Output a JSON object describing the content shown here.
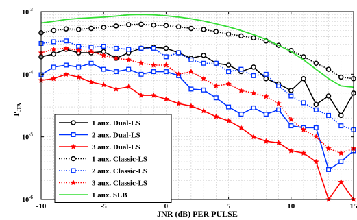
{
  "chart_data": {
    "type": "line",
    "title": "",
    "xlabel": "JNR (dB) PER PULSE",
    "ylabel_main": "P",
    "ylabel_sub": "JFA",
    "xlim": [
      -10,
      15
    ],
    "ylim": [
      1e-06,
      0.001
    ],
    "y_scale": "log",
    "grid": true,
    "legend_position": "lower-left",
    "x_ticks": [
      -10,
      -5,
      0,
      5,
      10,
      15
    ],
    "x_tick_labels": [
      "-10",
      "-5",
      "0",
      "5",
      "10",
      "15"
    ],
    "y_ticks": [
      1e-06,
      1e-05,
      0.0001,
      0.001
    ],
    "y_tick_labels": [
      {
        "base": "10",
        "exp": "-6"
      },
      {
        "base": "10",
        "exp": "-5"
      },
      {
        "base": "10",
        "exp": "-4"
      },
      {
        "base": "10",
        "exp": "-3"
      }
    ],
    "x": [
      -10,
      -9,
      -8,
      -7,
      -6,
      -5,
      -4,
      -3,
      -2,
      -1,
      0,
      1,
      2,
      3,
      4,
      5,
      6,
      7,
      8,
      9,
      10,
      11,
      12,
      13,
      14,
      15
    ],
    "series": [
      {
        "name": "1 aux. Dual-LS",
        "color": "#000000",
        "dash": "solid",
        "marker": "circle",
        "values": [
          0.00019,
          0.00021,
          0.00025,
          0.00022,
          0.00022,
          0.00023,
          0.00018,
          0.00022,
          0.00026,
          0.00027,
          0.00026,
          0.00022,
          0.00018,
          0.0002,
          0.00015,
          0.00014,
          0.00011,
          0.00013,
          8.5e-05,
          7e-05,
          5.5e-05,
          8.5e-05,
          3.3e-05,
          4.5e-05,
          2.2e-05,
          5e-05
        ]
      },
      {
        "name": "2 aux. Dual-LS",
        "color": "#0033ff",
        "dash": "solid",
        "marker": "square",
        "values": [
          9.8e-05,
          0.00013,
          0.00014,
          0.00013,
          0.00015,
          0.00012,
          0.00011,
          0.00012,
          0.0001,
          0.00011,
          0.00011,
          9.5e-05,
          5.8e-05,
          5.6e-05,
          4.2e-05,
          3e-05,
          2.3e-05,
          2.9e-05,
          2.3e-05,
          2.7e-05,
          1.5e-05,
          1.4e-05,
          1.4e-05,
          3e-06,
          4e-06,
          6e-06
        ]
      },
      {
        "name": "3 aux. Dual-LS",
        "color": "#ff0000",
        "dash": "solid",
        "marker": "star",
        "values": [
          8e-05,
          8.5e-05,
          0.0001,
          9e-05,
          7.5e-05,
          6.8e-05,
          5.8e-05,
          6.3e-05,
          4.6e-05,
          4.6e-05,
          4e-05,
          3.4e-05,
          3.1e-05,
          2.6e-05,
          2.1e-05,
          1.8e-05,
          1.4e-05,
          1e-05,
          8.5e-06,
          8e-06,
          6e-06,
          5.5e-06,
          4e-06,
          1e-06,
          1.9e-06,
          1e-06
        ]
      },
      {
        "name": "1 aux. Classic-LS",
        "color": "#000000",
        "dash": "dotted",
        "marker": "circle",
        "values": [
          0.00046,
          0.0005,
          0.00053,
          0.00052,
          0.00054,
          0.00056,
          0.00059,
          0.00062,
          0.00063,
          0.00061,
          0.0006,
          0.00057,
          0.00054,
          0.00052,
          0.00048,
          0.00044,
          0.00041,
          0.00038,
          0.00034,
          0.00029,
          0.00024,
          0.00019,
          0.00015,
          0.00012,
          9e-05,
          8.5e-05
        ]
      },
      {
        "name": "2 aux. Classic-LS",
        "color": "#0033ff",
        "dash": "dotted",
        "marker": "square",
        "values": [
          0.00031,
          0.00033,
          0.00034,
          0.00028,
          0.00027,
          0.00028,
          0.00026,
          0.00025,
          0.00026,
          0.00026,
          0.00019,
          0.00022,
          0.00017,
          0.00015,
          0.00015,
          0.00011,
          0.00012,
          9.5e-05,
          0.0001,
          6.5e-05,
          4.5e-05,
          3.5e-05,
          2.7e-05,
          2.2e-05,
          1.5e-05,
          1.3e-05
        ]
      },
      {
        "name": "3 aux. Classic-LS",
        "color": "#ff0000",
        "dash": "dotted",
        "marker": "star",
        "values": [
          0.00022,
          0.00025,
          0.00026,
          0.00024,
          0.00023,
          0.0002,
          0.00018,
          0.00017,
          0.00015,
          0.00014,
          0.00014,
          0.0001,
          0.00011,
          8.5e-05,
          6.5e-05,
          7e-05,
          5.5e-05,
          5e-05,
          4.4e-05,
          3.4e-05,
          1.9e-05,
          1.3e-05,
          1e-05,
          6.5e-06,
          5.5e-06,
          6.5e-06
        ]
      },
      {
        "name": "1 aux. SLB",
        "color": "#33dd33",
        "dash": "solid",
        "marker": "none",
        "values": [
          0.00066,
          0.0007,
          0.00075,
          0.00078,
          0.0008,
          0.00082,
          0.00085,
          0.00089,
          0.0009,
          0.00089,
          0.00086,
          0.00082,
          0.00077,
          0.00071,
          0.00064,
          0.00057,
          0.0005,
          0.00043,
          0.00036,
          0.00029,
          0.00023,
          0.00017,
          0.00012,
          8.5e-05,
          6.5e-05,
          6.2e-05
        ]
      }
    ]
  }
}
